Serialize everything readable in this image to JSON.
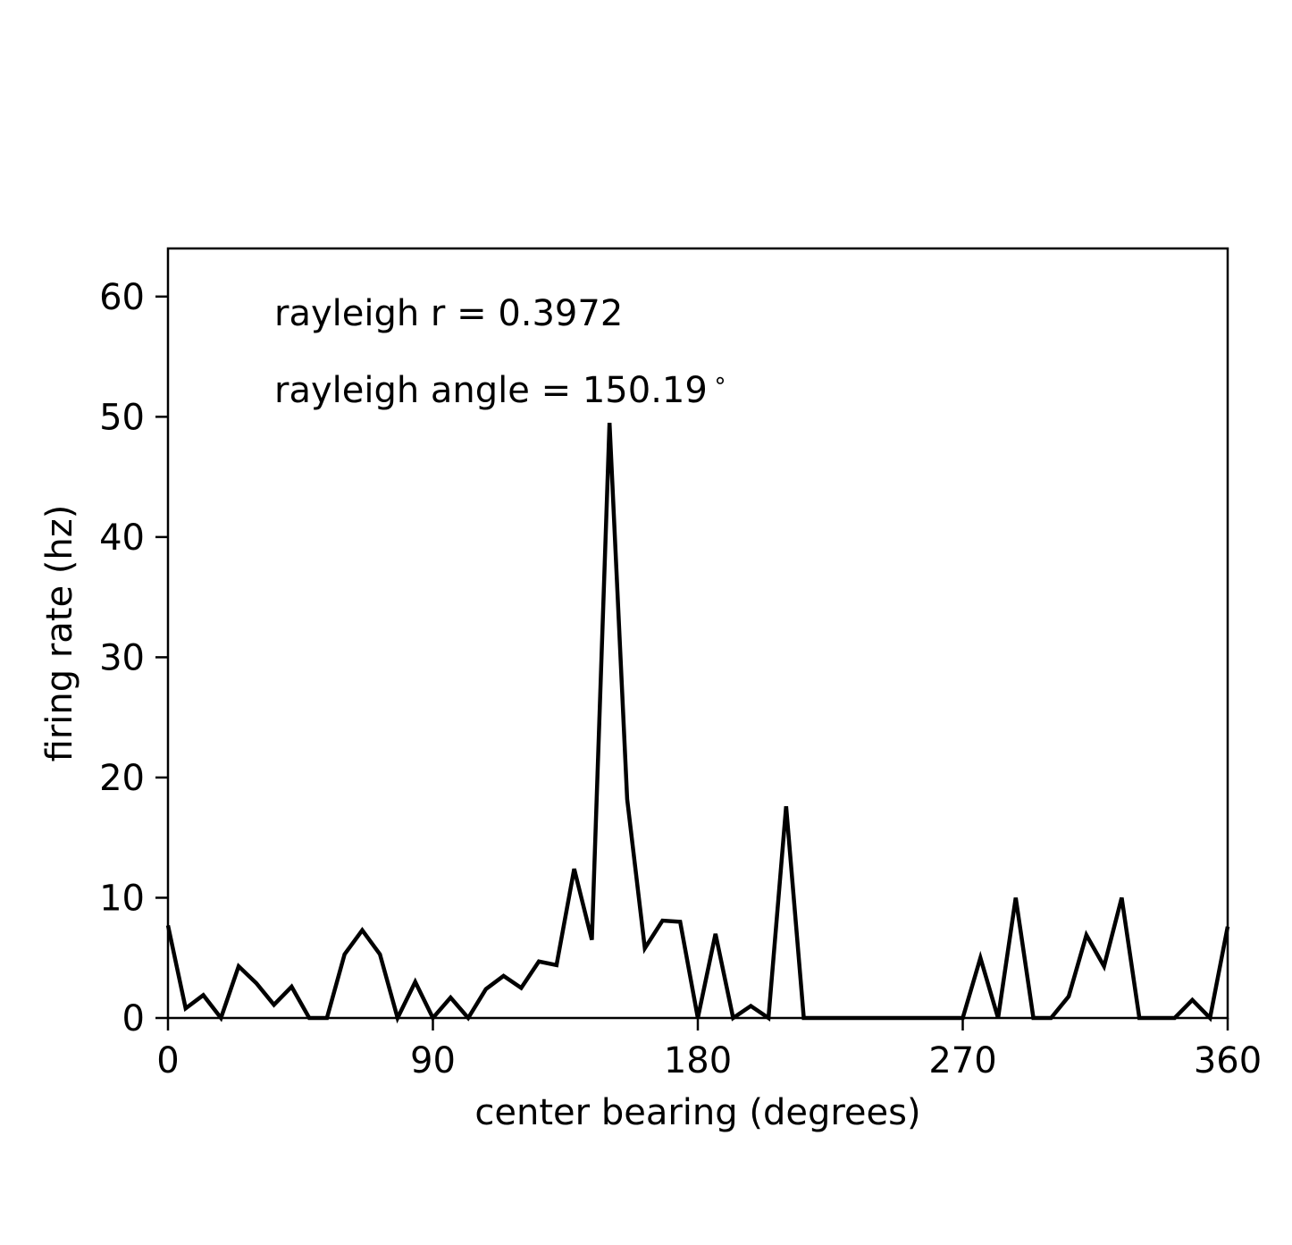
{
  "chart_data": {
    "type": "line",
    "xlabel": "center bearing (degrees)",
    "ylabel": "firing rate (hz)",
    "xlim": [
      0,
      360
    ],
    "ylim": [
      0,
      64
    ],
    "xticks": [
      0,
      90,
      180,
      270,
      360
    ],
    "yticks": [
      0,
      10,
      20,
      30,
      40,
      50,
      60
    ],
    "grid": false,
    "line_color": "#000000",
    "annotations": [
      "rayleigh r = 0.3972",
      "rayleigh angle = 150.19$^\\circ$"
    ],
    "annotation_display": [
      "rayleigh r = 0.3972",
      "rayleigh angle = 150.19"
    ],
    "series": [
      {
        "x": [
          0,
          6,
          12,
          18,
          24,
          30,
          36,
          42,
          48,
          54,
          60,
          66,
          72,
          78,
          84,
          90,
          96,
          102,
          108,
          114,
          120,
          126,
          132,
          138,
          144,
          150,
          156,
          162,
          168,
          174,
          180,
          186,
          192,
          198,
          204,
          210,
          216,
          222,
          228,
          234,
          240,
          246,
          252,
          258,
          264,
          270,
          276,
          282,
          288,
          294,
          300,
          306,
          312,
          318,
          324,
          330,
          336,
          342,
          348,
          354,
          360
        ],
        "values": [
          7.7,
          0.8,
          1.9,
          0,
          4.3,
          2.9,
          1.1,
          2.6,
          0,
          0,
          5.3,
          7.3,
          5.3,
          0,
          3,
          0,
          1.7,
          0,
          2.4,
          3.5,
          2.5,
          4.7,
          4.4,
          12.4,
          6.5,
          49.5,
          18.2,
          5.8,
          8.1,
          8,
          0,
          7,
          0,
          1,
          0,
          17.6,
          0,
          0,
          0,
          0,
          0,
          0,
          0,
          0,
          0,
          0,
          5,
          0,
          10,
          0,
          0,
          1.8,
          6.9,
          4.3,
          10,
          0,
          0,
          0,
          1.5,
          0,
          7.6
        ]
      }
    ]
  }
}
